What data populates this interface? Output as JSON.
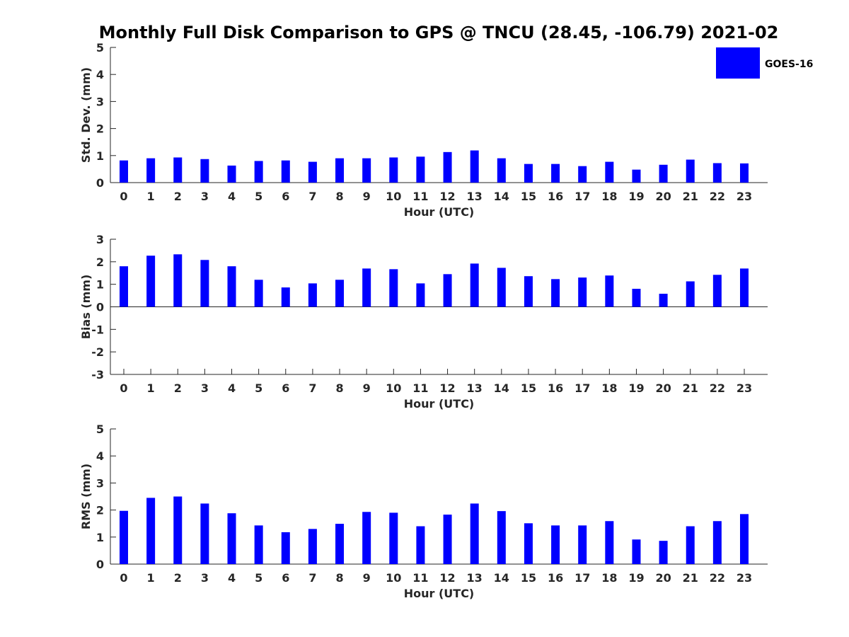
{
  "title": "Monthly Full Disk Comparison to GPS @ TNCU (28.45, -106.79) 2021-02",
  "legend": {
    "label": "GOES-16",
    "color": "#0000ff",
    "placement": "top-right"
  },
  "chart_data": [
    {
      "type": "bar",
      "xlabel": "Hour (UTC)",
      "ylabel": "Std. Dev. (mm)",
      "ylim": [
        0,
        5
      ],
      "yticks": [
        0,
        1,
        2,
        3,
        4,
        5
      ],
      "categories": [
        "0",
        "1",
        "2",
        "3",
        "4",
        "5",
        "6",
        "7",
        "8",
        "9",
        "10",
        "11",
        "12",
        "13",
        "14",
        "15",
        "16",
        "17",
        "18",
        "19",
        "20",
        "21",
        "22",
        "23"
      ],
      "series": [
        {
          "name": "GOES-16",
          "color": "#0000ff",
          "values": [
            0.82,
            0.9,
            0.93,
            0.87,
            0.63,
            0.8,
            0.82,
            0.77,
            0.9,
            0.9,
            0.93,
            0.96,
            1.13,
            1.19,
            0.9,
            0.69,
            0.69,
            0.61,
            0.77,
            0.48,
            0.66,
            0.85,
            0.72,
            0.71
          ]
        }
      ]
    },
    {
      "type": "bar",
      "xlabel": "Hour (UTC)",
      "ylabel": "Bias (mm)",
      "ylim": [
        -3,
        3
      ],
      "yticks": [
        -3,
        -2,
        -1,
        0,
        1,
        2,
        3
      ],
      "categories": [
        "0",
        "1",
        "2",
        "3",
        "4",
        "5",
        "6",
        "7",
        "8",
        "9",
        "10",
        "11",
        "12",
        "13",
        "14",
        "15",
        "16",
        "17",
        "18",
        "19",
        "20",
        "21",
        "22",
        "23"
      ],
      "series": [
        {
          "name": "GOES-16",
          "color": "#0000ff",
          "values": [
            1.8,
            2.27,
            2.33,
            2.08,
            1.8,
            1.2,
            0.86,
            1.04,
            1.2,
            1.7,
            1.67,
            1.04,
            1.45,
            1.92,
            1.73,
            1.36,
            1.23,
            1.3,
            1.39,
            0.8,
            0.58,
            1.13,
            1.42,
            1.7
          ]
        }
      ]
    },
    {
      "type": "bar",
      "xlabel": "Hour (UTC)",
      "ylabel": "RMS (mm)",
      "ylim": [
        0,
        5
      ],
      "yticks": [
        0,
        1,
        2,
        3,
        4,
        5
      ],
      "categories": [
        "0",
        "1",
        "2",
        "3",
        "4",
        "5",
        "6",
        "7",
        "8",
        "9",
        "10",
        "11",
        "12",
        "13",
        "14",
        "15",
        "16",
        "17",
        "18",
        "19",
        "20",
        "21",
        "22",
        "23"
      ],
      "series": [
        {
          "name": "GOES-16",
          "color": "#0000ff",
          "values": [
            1.97,
            2.45,
            2.5,
            2.24,
            1.88,
            1.43,
            1.18,
            1.3,
            1.49,
            1.93,
            1.9,
            1.4,
            1.83,
            2.24,
            1.96,
            1.51,
            1.43,
            1.43,
            1.59,
            0.91,
            0.86,
            1.4,
            1.59,
            1.85
          ]
        }
      ]
    }
  ]
}
